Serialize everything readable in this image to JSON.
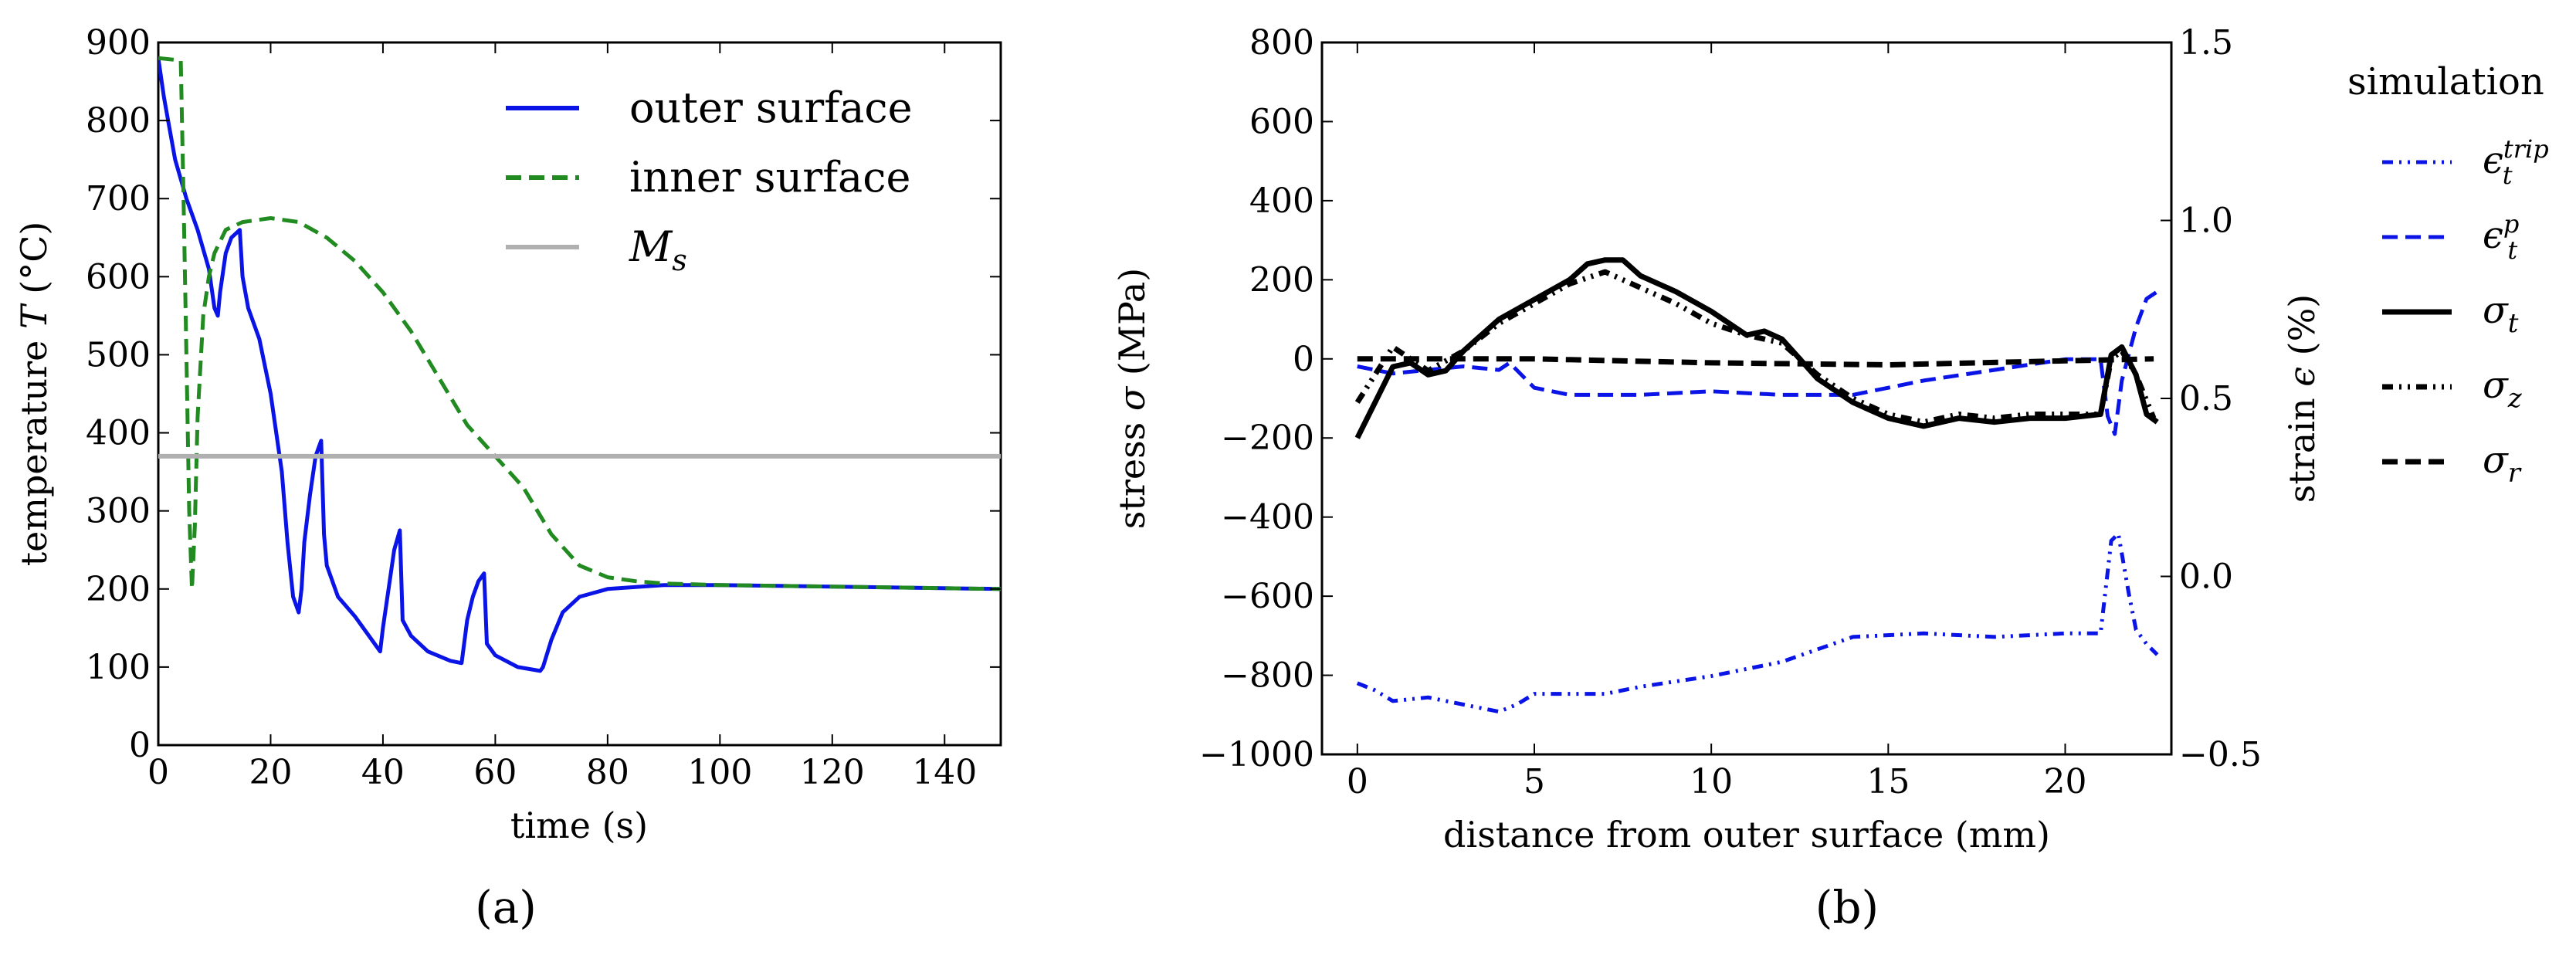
{
  "chart_data": [
    {
      "type": "line",
      "panel_label": "(a)",
      "xlabel": "time (s)",
      "ylabel_prefix": "temperature ",
      "ylabel_symbol": "T",
      "ylabel_suffix": " (°C)",
      "xlim": [
        0,
        150
      ],
      "ylim": [
        0,
        900
      ],
      "xticks": [
        0,
        20,
        40,
        60,
        80,
        100,
        120,
        140
      ],
      "yticks": [
        0,
        100,
        200,
        300,
        400,
        500,
        600,
        700,
        800,
        900
      ],
      "legend_position": "top-right",
      "series": [
        {
          "name": "outer surface",
          "color": "#0a14e6",
          "style": "solid",
          "points": [
            [
              0,
              880
            ],
            [
              1,
              830
            ],
            [
              2,
              790
            ],
            [
              3,
              750
            ],
            [
              5,
              700
            ],
            [
              7,
              660
            ],
            [
              9,
              610
            ],
            [
              10,
              560
            ],
            [
              10.6,
              550
            ],
            [
              11,
              580
            ],
            [
              12,
              630
            ],
            [
              13,
              650
            ],
            [
              14.5,
              660
            ],
            [
              15,
              600
            ],
            [
              16,
              560
            ],
            [
              18,
              520
            ],
            [
              20,
              450
            ],
            [
              22,
              350
            ],
            [
              23,
              260
            ],
            [
              24,
              190
            ],
            [
              25,
              170
            ],
            [
              25.5,
              200
            ],
            [
              26,
              260
            ],
            [
              27,
              320
            ],
            [
              28,
              370
            ],
            [
              29,
              390
            ],
            [
              29.5,
              270
            ],
            [
              30,
              230
            ],
            [
              32,
              190
            ],
            [
              35,
              165
            ],
            [
              38,
              135
            ],
            [
              39.5,
              120
            ],
            [
              40,
              150
            ],
            [
              41,
              200
            ],
            [
              42,
              250
            ],
            [
              43,
              275
            ],
            [
              43.5,
              160
            ],
            [
              45,
              140
            ],
            [
              48,
              120
            ],
            [
              52,
              108
            ],
            [
              54,
              105
            ],
            [
              55,
              160
            ],
            [
              56,
              190
            ],
            [
              57,
              210
            ],
            [
              58,
              220
            ],
            [
              58.5,
              130
            ],
            [
              60,
              115
            ],
            [
              64,
              100
            ],
            [
              68,
              95
            ],
            [
              68.5,
              100
            ],
            [
              70,
              135
            ],
            [
              72,
              170
            ],
            [
              75,
              190
            ],
            [
              80,
              200
            ],
            [
              90,
              205
            ],
            [
              100,
              205
            ],
            [
              120,
              203
            ],
            [
              150,
              200
            ]
          ]
        },
        {
          "name": "inner surface",
          "color": "#218b21",
          "style": "dashed",
          "points": [
            [
              0,
              880
            ],
            [
              4,
              877
            ],
            [
              4.5,
              700
            ],
            [
              5,
              500
            ],
            [
              5.5,
              300
            ],
            [
              6,
              200
            ],
            [
              6.5,
              280
            ],
            [
              7,
              420
            ],
            [
              8,
              550
            ],
            [
              9,
              600
            ],
            [
              10,
              630
            ],
            [
              12,
              660
            ],
            [
              15,
              670
            ],
            [
              20,
              675
            ],
            [
              25,
              670
            ],
            [
              30,
              650
            ],
            [
              35,
              620
            ],
            [
              40,
              580
            ],
            [
              45,
              530
            ],
            [
              50,
              470
            ],
            [
              55,
              410
            ],
            [
              60,
              370
            ],
            [
              65,
              330
            ],
            [
              70,
              270
            ],
            [
              75,
              230
            ],
            [
              80,
              215
            ],
            [
              85,
              210
            ],
            [
              90,
              207
            ],
            [
              100,
              205
            ],
            [
              120,
              203
            ],
            [
              150,
              200
            ]
          ]
        },
        {
          "name": "M",
          "name_sub": "s",
          "color": "#b0b0b0",
          "style": "solid",
          "points": [
            [
              0,
              370
            ],
            [
              150,
              370
            ]
          ]
        }
      ]
    },
    {
      "type": "line",
      "panel_label": "(b)",
      "xlabel": "distance from outer surface (mm)",
      "ylabel_prefix": "stress ",
      "ylabel_symbol": "σ",
      "ylabel_suffix": " (MPa)",
      "y2label_prefix": "strain ",
      "y2label_symbol": "ϵ",
      "y2label_suffix": " (%)",
      "xlim": [
        -1,
        23
      ],
      "ylim": [
        -1000,
        800
      ],
      "y2lim": [
        -0.5,
        1.5
      ],
      "xticks": [
        0,
        5,
        10,
        15,
        20
      ],
      "yticks": [
        -1000,
        -800,
        -600,
        -400,
        -200,
        0,
        200,
        400,
        600,
        800
      ],
      "yticklabels": [
        "−1000",
        "−800",
        "−600",
        "−400",
        "−200",
        "0",
        "200",
        "400",
        "600",
        "800"
      ],
      "y2ticks": [
        -0.5,
        0.0,
        0.5,
        1.0,
        1.5
      ],
      "y2ticklabels": [
        "−0.5",
        "0.0",
        "0.5",
        "1.0",
        "1.5"
      ],
      "legend_title": "simulation",
      "legend_position": "outside-right",
      "series": [
        {
          "name": "ϵ",
          "name_sub": "t",
          "name_sup": "trip",
          "color": "#0a14e6",
          "style": "dashdotdot",
          "axis": "right",
          "points": [
            [
              0,
              -0.3
            ],
            [
              0.5,
              -0.32
            ],
            [
              1,
              -0.35
            ],
            [
              2,
              -0.34
            ],
            [
              3,
              -0.36
            ],
            [
              4,
              -0.38
            ],
            [
              4.5,
              -0.36
            ],
            [
              5,
              -0.33
            ],
            [
              7,
              -0.33
            ],
            [
              8,
              -0.31
            ],
            [
              10,
              -0.28
            ],
            [
              12,
              -0.24
            ],
            [
              14,
              -0.17
            ],
            [
              16,
              -0.16
            ],
            [
              18,
              -0.17
            ],
            [
              20,
              -0.16
            ],
            [
              21,
              -0.16
            ],
            [
              21.3,
              0.1
            ],
            [
              21.5,
              0.12
            ],
            [
              21.8,
              -0.05
            ],
            [
              22,
              -0.15
            ],
            [
              22.3,
              -0.19
            ],
            [
              22.6,
              -0.22
            ]
          ]
        },
        {
          "name": "ϵ",
          "name_sub": "t",
          "name_sup": "p",
          "color": "#0a14e6",
          "style": "dashed",
          "axis": "right",
          "points": [
            [
              0,
              0.59
            ],
            [
              1,
              0.57
            ],
            [
              2,
              0.58
            ],
            [
              3,
              0.59
            ],
            [
              4,
              0.58
            ],
            [
              4.3,
              0.6
            ],
            [
              5,
              0.53
            ],
            [
              6,
              0.51
            ],
            [
              8,
              0.51
            ],
            [
              10,
              0.52
            ],
            [
              12,
              0.51
            ],
            [
              14,
              0.51
            ],
            [
              16,
              0.55
            ],
            [
              18,
              0.58
            ],
            [
              20,
              0.61
            ],
            [
              21,
              0.61
            ],
            [
              21.2,
              0.45
            ],
            [
              21.4,
              0.4
            ],
            [
              21.6,
              0.55
            ],
            [
              22,
              0.7
            ],
            [
              22.3,
              0.78
            ],
            [
              22.6,
              0.8
            ]
          ]
        },
        {
          "name": "σ",
          "name_sub": "t",
          "color": "#000000",
          "style": "solid",
          "axis": "left",
          "points": [
            [
              0,
              -200
            ],
            [
              0.5,
              -110
            ],
            [
              1,
              -20
            ],
            [
              1.5,
              -10
            ],
            [
              2,
              -40
            ],
            [
              2.5,
              -30
            ],
            [
              3,
              20
            ],
            [
              4,
              100
            ],
            [
              5,
              150
            ],
            [
              6,
              200
            ],
            [
              6.5,
              240
            ],
            [
              7,
              250
            ],
            [
              7.5,
              250
            ],
            [
              8,
              210
            ],
            [
              9,
              170
            ],
            [
              10,
              120
            ],
            [
              10.5,
              90
            ],
            [
              11,
              60
            ],
            [
              11.5,
              70
            ],
            [
              12,
              50
            ],
            [
              13,
              -50
            ],
            [
              14,
              -110
            ],
            [
              15,
              -150
            ],
            [
              16,
              -170
            ],
            [
              17,
              -150
            ],
            [
              18,
              -160
            ],
            [
              19,
              -150
            ],
            [
              20,
              -150
            ],
            [
              21,
              -140
            ],
            [
              21.3,
              10
            ],
            [
              21.6,
              30
            ],
            [
              22,
              -40
            ],
            [
              22.3,
              -140
            ],
            [
              22.6,
              -160
            ]
          ]
        },
        {
          "name": "σ",
          "name_sub": "z",
          "color": "#000000",
          "style": "dashdotdot",
          "axis": "left",
          "points": [
            [
              0,
              -110
            ],
            [
              1,
              30
            ],
            [
              2,
              -30
            ],
            [
              3,
              20
            ],
            [
              4,
              90
            ],
            [
              5,
              140
            ],
            [
              6,
              190
            ],
            [
              7,
              220
            ],
            [
              8,
              180
            ],
            [
              9,
              140
            ],
            [
              10,
              90
            ],
            [
              11,
              60
            ],
            [
              12,
              40
            ],
            [
              13,
              -40
            ],
            [
              14,
              -100
            ],
            [
              15,
              -140
            ],
            [
              16,
              -160
            ],
            [
              17,
              -140
            ],
            [
              18,
              -150
            ],
            [
              19,
              -140
            ],
            [
              20,
              -140
            ],
            [
              21,
              -140
            ],
            [
              21.3,
              0
            ],
            [
              21.6,
              20
            ],
            [
              22,
              -40
            ],
            [
              22.5,
              -150
            ]
          ]
        },
        {
          "name": "σ",
          "name_sub": "r",
          "color": "#000000",
          "style": "dashed",
          "axis": "left",
          "points": [
            [
              0,
              0
            ],
            [
              5,
              0
            ],
            [
              10,
              -10
            ],
            [
              15,
              -15
            ],
            [
              20,
              -5
            ],
            [
              22.5,
              0
            ]
          ]
        }
      ]
    }
  ]
}
